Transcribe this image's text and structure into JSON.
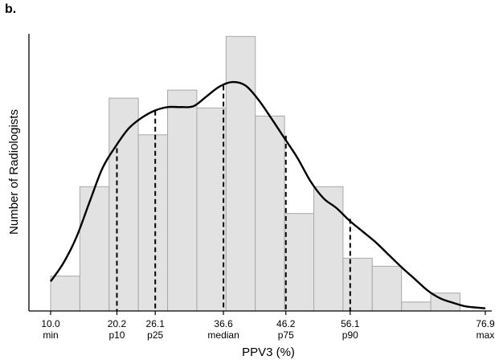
{
  "panel_label": "b.",
  "colors": {
    "bar_fill": "#e2e2e2",
    "bar_stroke": "#a8a8a8",
    "curve": "#000000",
    "axis": "#000000"
  },
  "chart_data": {
    "type": "bar",
    "xlabel": "PPV3 (%)",
    "ylabel": "Number of Radiologists",
    "xlim": [
      10.0,
      76.9
    ],
    "ylim": [
      0,
      31
    ],
    "grid": false,
    "bins": [
      {
        "x0": 10.0,
        "x1": 14.5,
        "count": 3.9
      },
      {
        "x0": 14.5,
        "x1": 19.0,
        "count": 13.9
      },
      {
        "x0": 19.0,
        "x1": 23.5,
        "count": 23.8
      },
      {
        "x0": 23.5,
        "x1": 28.0,
        "count": 19.7
      },
      {
        "x0": 28.0,
        "x1": 32.5,
        "count": 24.7
      },
      {
        "x0": 32.5,
        "x1": 37.0,
        "count": 22.7
      },
      {
        "x0": 37.0,
        "x1": 41.5,
        "count": 30.7
      },
      {
        "x0": 41.5,
        "x1": 46.0,
        "count": 21.8
      },
      {
        "x0": 46.0,
        "x1": 50.5,
        "count": 10.9
      },
      {
        "x0": 50.5,
        "x1": 55.0,
        "count": 13.9
      },
      {
        "x0": 55.0,
        "x1": 59.5,
        "count": 5.9
      },
      {
        "x0": 59.5,
        "x1": 64.0,
        "count": 5.0
      },
      {
        "x0": 64.0,
        "x1": 68.5,
        "count": 1.0
      },
      {
        "x0": 68.5,
        "x1": 73.0,
        "count": 2.0
      }
    ],
    "density_curve": [
      [
        10.0,
        3.3
      ],
      [
        12.0,
        5.4
      ],
      [
        14.0,
        8.3
      ],
      [
        16.0,
        12.2
      ],
      [
        18.0,
        16.0
      ],
      [
        20.0,
        18.4
      ],
      [
        22.0,
        20.4
      ],
      [
        24.0,
        21.6
      ],
      [
        26.0,
        22.4
      ],
      [
        28.0,
        22.8
      ],
      [
        30.0,
        22.8
      ],
      [
        32.0,
        22.9
      ],
      [
        34.0,
        24.0
      ],
      [
        36.0,
        25.1
      ],
      [
        38.0,
        25.6
      ],
      [
        40.0,
        25.2
      ],
      [
        42.0,
        23.6
      ],
      [
        44.0,
        21.5
      ],
      [
        46.0,
        19.3
      ],
      [
        48.0,
        17.1
      ],
      [
        50.0,
        14.5
      ],
      [
        52.0,
        12.6
      ],
      [
        54.0,
        11.5
      ],
      [
        56.0,
        10.1
      ],
      [
        58.0,
        8.9
      ],
      [
        60.0,
        7.7
      ],
      [
        62.0,
        6.3
      ],
      [
        64.0,
        4.9
      ],
      [
        66.0,
        3.6
      ],
      [
        68.0,
        2.3
      ],
      [
        70.0,
        1.4
      ],
      [
        72.0,
        0.9
      ],
      [
        74.0,
        0.5
      ],
      [
        76.9,
        0.3
      ]
    ],
    "percentile_lines": [
      {
        "x": 20.2,
        "y": 18.2
      },
      {
        "x": 26.1,
        "y": 22.4
      },
      {
        "x": 36.6,
        "y": 25.2
      },
      {
        "x": 46.2,
        "y": 19.6
      },
      {
        "x": 56.1,
        "y": 10.3
      }
    ],
    "x_ticks": [
      {
        "value": 10.0,
        "label": "10.0",
        "sublabel": "min"
      },
      {
        "value": 20.2,
        "label": "20.2",
        "sublabel": "p10"
      },
      {
        "value": 26.1,
        "label": "26.1",
        "sublabel": "p25"
      },
      {
        "value": 36.6,
        "label": "36.6",
        "sublabel": "median"
      },
      {
        "value": 46.2,
        "label": "46.2",
        "sublabel": "p75"
      },
      {
        "value": 56.1,
        "label": "56.1",
        "sublabel": "p90"
      },
      {
        "value": 76.9,
        "label": "76.9",
        "sublabel": "max"
      }
    ]
  }
}
